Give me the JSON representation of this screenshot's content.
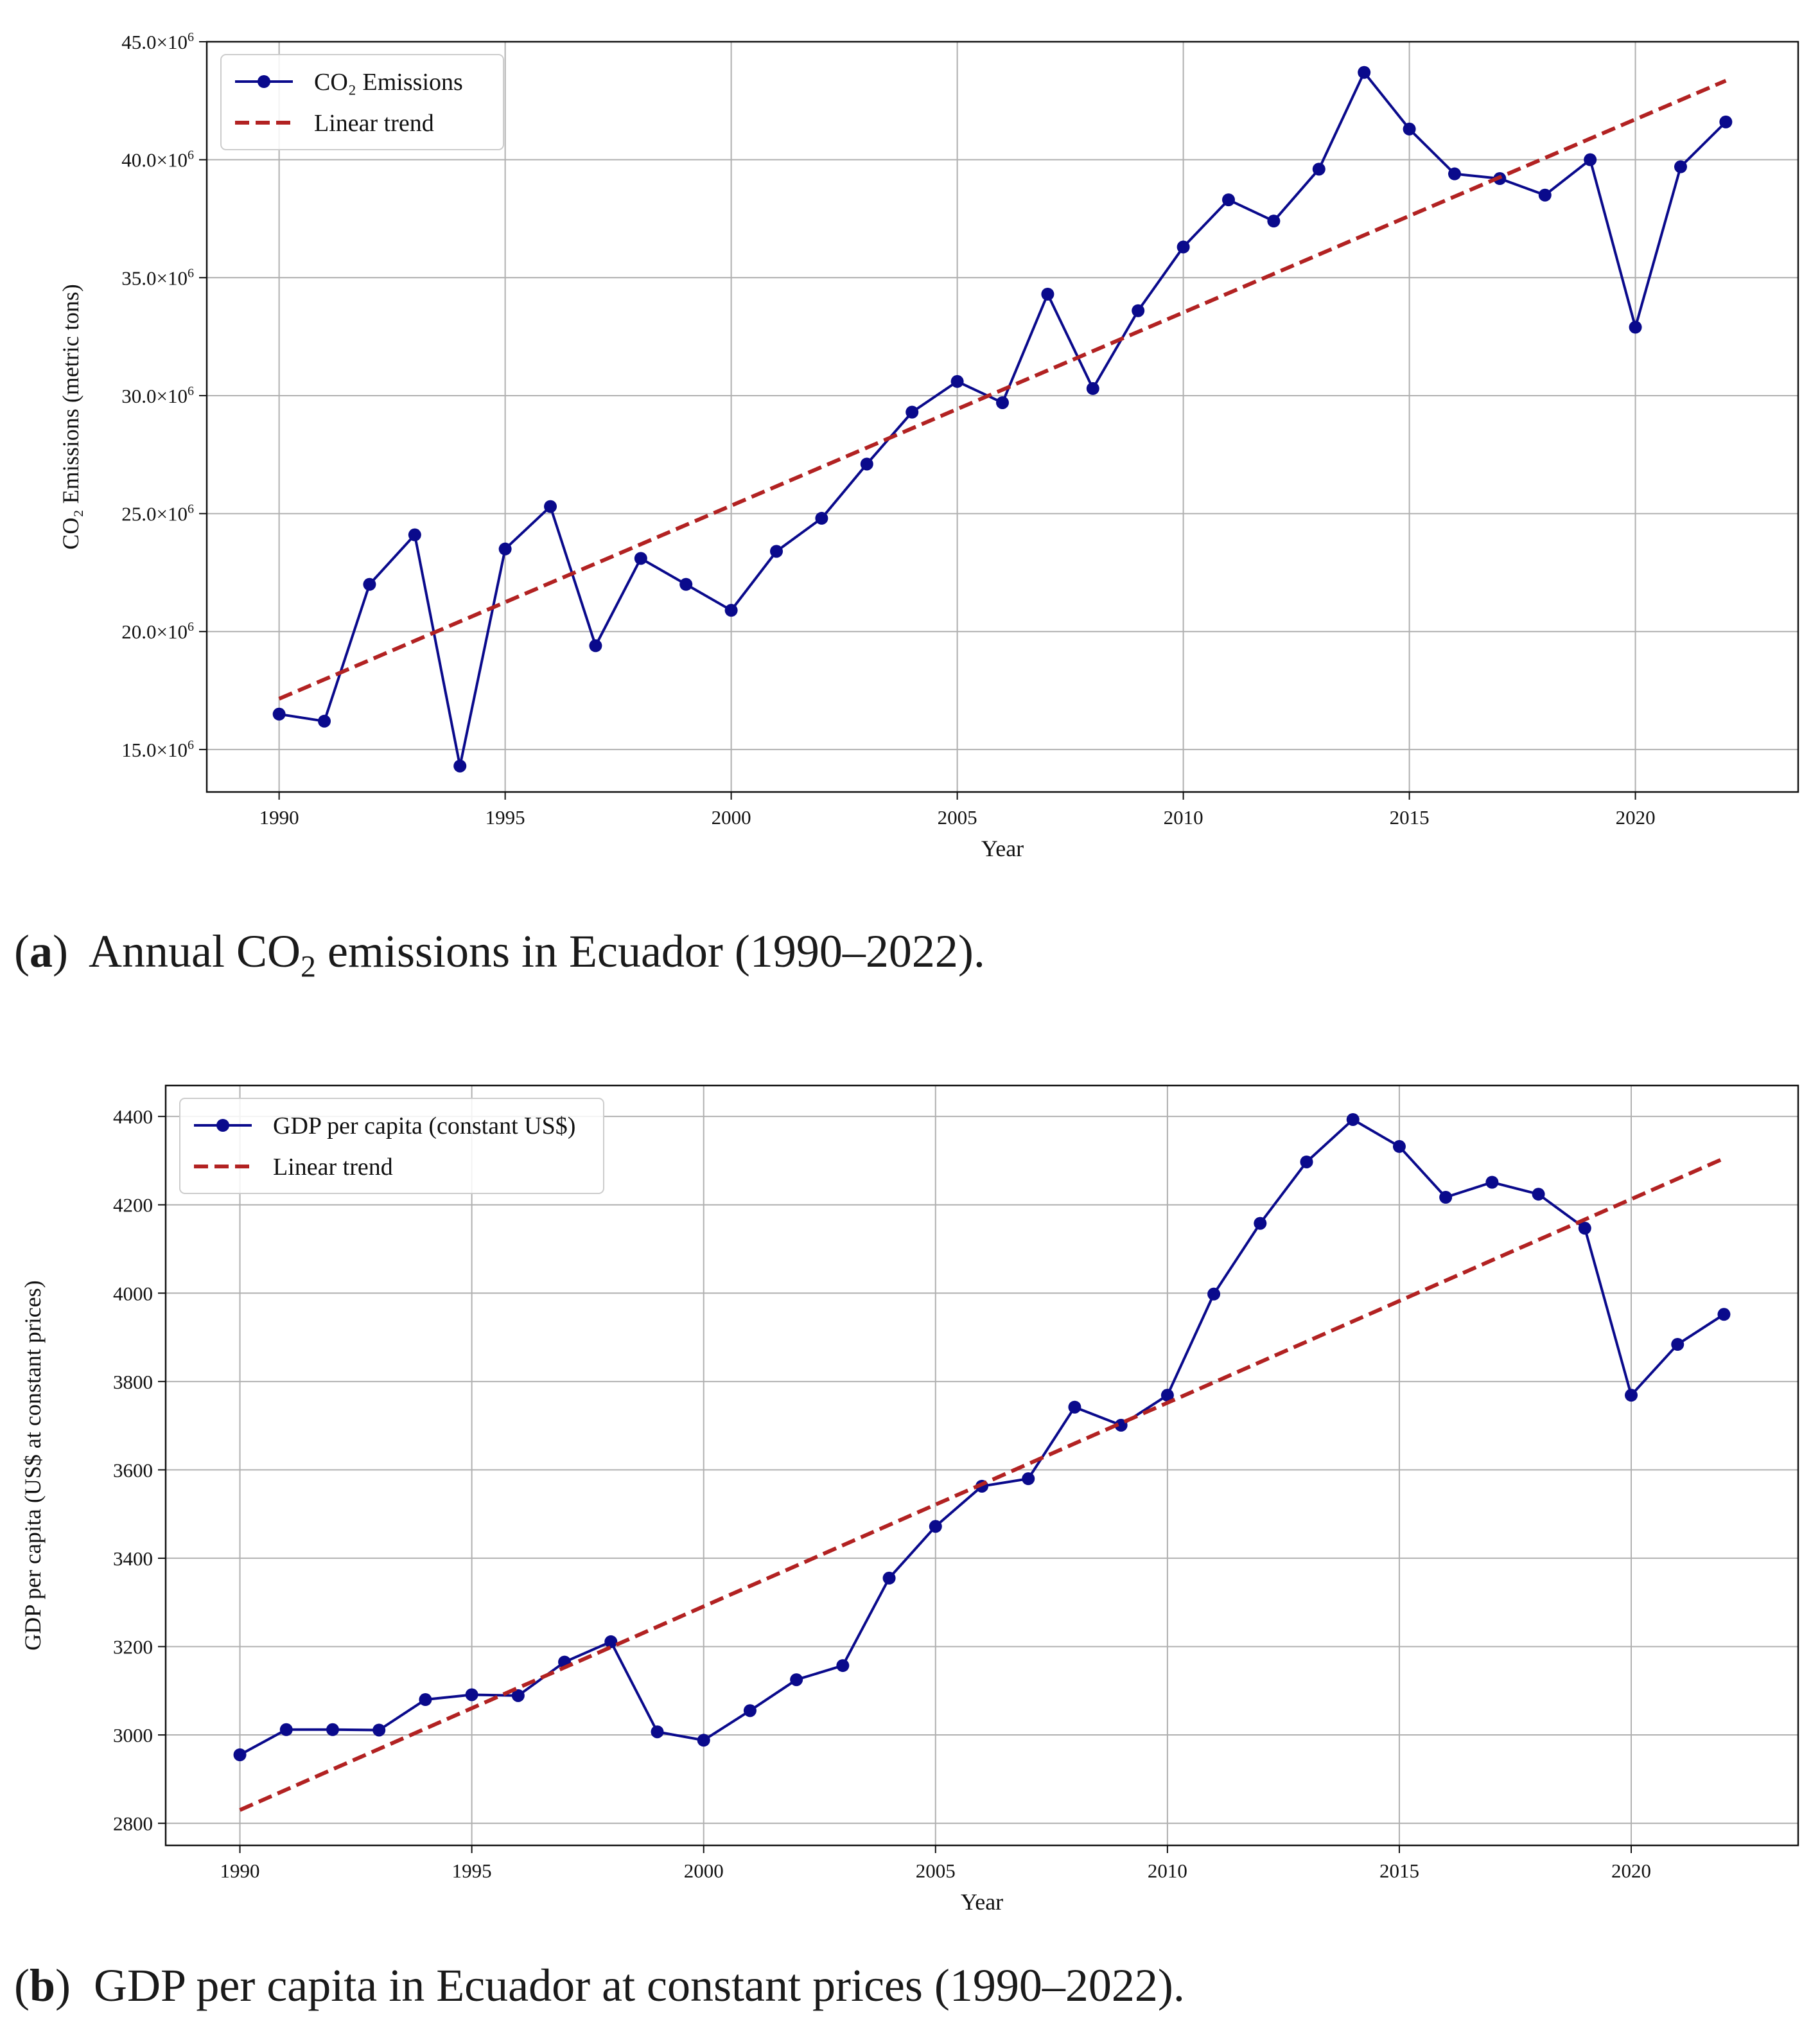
{
  "captions": {
    "a": {
      "label": "a",
      "text_before": "Annual CO",
      "subscript": "2",
      "text_after": " emissions in Ecuador (1990–2022)."
    },
    "b": {
      "label": "b",
      "text": "GDP per capita in Ecuador at constant prices (1990–2022)."
    }
  },
  "chart_data": [
    {
      "id": "a",
      "type": "line",
      "title": "",
      "xlabel": "Year",
      "ylabel": "CO₂ Emissions (metric tons)",
      "xlim": [
        1988.4,
        2023.6
      ],
      "ylim": [
        13.2,
        45.0
      ],
      "y_scale_note": "values in millions of metric tons",
      "y_tick_mantissa": [
        "15.0",
        "20.0",
        "25.0",
        "30.0",
        "35.0",
        "40.0",
        "45.0"
      ],
      "y_tick_suffix": "×10",
      "y_tick_exponent": "6",
      "x_ticks": [
        1990,
        1995,
        2000,
        2005,
        2010,
        2015,
        2020
      ],
      "grid": true,
      "legend_position": "top-left",
      "series": [
        {
          "name": "CO₂ Emissions",
          "style": "line-marker",
          "color": "#0a0a8c",
          "x": [
            1990,
            1991,
            1992,
            1993,
            1994,
            1995,
            1996,
            1997,
            1998,
            1999,
            2000,
            2001,
            2002,
            2003,
            2004,
            2005,
            2006,
            2007,
            2008,
            2009,
            2010,
            2011,
            2012,
            2013,
            2014,
            2015,
            2016,
            2017,
            2018,
            2019,
            2020,
            2021,
            2022
          ],
          "values": [
            16.5,
            16.2,
            22.0,
            24.1,
            14.3,
            23.5,
            25.3,
            19.4,
            23.1,
            22.0,
            20.9,
            23.4,
            24.8,
            27.1,
            29.3,
            30.6,
            29.7,
            34.3,
            30.3,
            33.6,
            36.3,
            38.3,
            37.4,
            39.6,
            43.7,
            41.3,
            39.4,
            39.2,
            38.5,
            40.0,
            32.9,
            39.7,
            41.6
          ]
        },
        {
          "name": "Linear trend",
          "style": "dashed",
          "color": "#b22222",
          "x": [
            1990,
            2022
          ],
          "values": [
            17.15,
            43.35
          ]
        }
      ]
    },
    {
      "id": "b",
      "type": "line",
      "title": "",
      "xlabel": "Year",
      "ylabel": "GDP per capita (US$ at constant prices)",
      "xlim": [
        1988.4,
        2023.6
      ],
      "ylim": [
        2750,
        4470
      ],
      "y_ticks": [
        2800,
        3000,
        3200,
        3400,
        3600,
        3800,
        4000,
        4200,
        4400
      ],
      "x_ticks": [
        1990,
        1995,
        2000,
        2005,
        2010,
        2015,
        2020
      ],
      "grid": true,
      "legend_position": "top-left",
      "series": [
        {
          "name": "GDP per capita (constant US$)",
          "style": "line-marker",
          "color": "#0a0a8c",
          "x": [
            1990,
            1991,
            1992,
            1993,
            1994,
            1995,
            1996,
            1997,
            1998,
            1999,
            2000,
            2001,
            2002,
            2003,
            2004,
            2005,
            2006,
            2007,
            2008,
            2009,
            2010,
            2011,
            2012,
            2013,
            2014,
            2015,
            2016,
            2017,
            2018,
            2019,
            2020,
            2021,
            2022
          ],
          "values": [
            2955,
            3012,
            3012,
            3011,
            3080,
            3091,
            3089,
            3165,
            3211,
            3007,
            2988,
            3055,
            3125,
            3157,
            3355,
            3472,
            3563,
            3580,
            3742,
            3701,
            3769,
            3998,
            4158,
            4297,
            4393,
            4332,
            4217,
            4251,
            4224,
            4147,
            3769,
            3884,
            3952
          ]
        },
        {
          "name": "Linear trend",
          "style": "dashed",
          "color": "#b22222",
          "x": [
            1990,
            2022
          ],
          "values": [
            2830,
            4305
          ]
        }
      ]
    }
  ]
}
